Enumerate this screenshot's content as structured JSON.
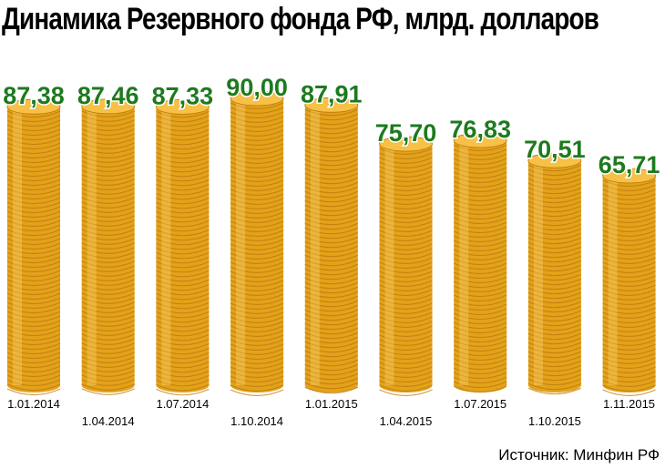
{
  "chart_data": {
    "type": "bar",
    "title": "Динамика Резервного фонда РФ, млрд. долларов",
    "categories": [
      "1.01.2014",
      "1.04.2014",
      "1.07.2014",
      "1.10.2014",
      "1.01.2015",
      "1.04.2015",
      "1.07.2015",
      "1.10.2015",
      "1.11.2015"
    ],
    "values": [
      87.38,
      87.46,
      87.33,
      90.0,
      87.91,
      75.7,
      76.83,
      70.51,
      65.71
    ],
    "value_labels": [
      "87,38",
      "87,46",
      "87,33",
      "90,00",
      "87,91",
      "75,70",
      "76,83",
      "70,51",
      "65,71"
    ],
    "xlabel": "",
    "ylabel": "",
    "grid": false,
    "source": "Источник: Минфин РФ"
  },
  "colors": {
    "coin_face": "#F7C046",
    "coin_edge": "#E3A21A",
    "coin_line": "#B9780C",
    "label_fill": "#1E7A1E",
    "label_stroke": "#ffffff"
  }
}
